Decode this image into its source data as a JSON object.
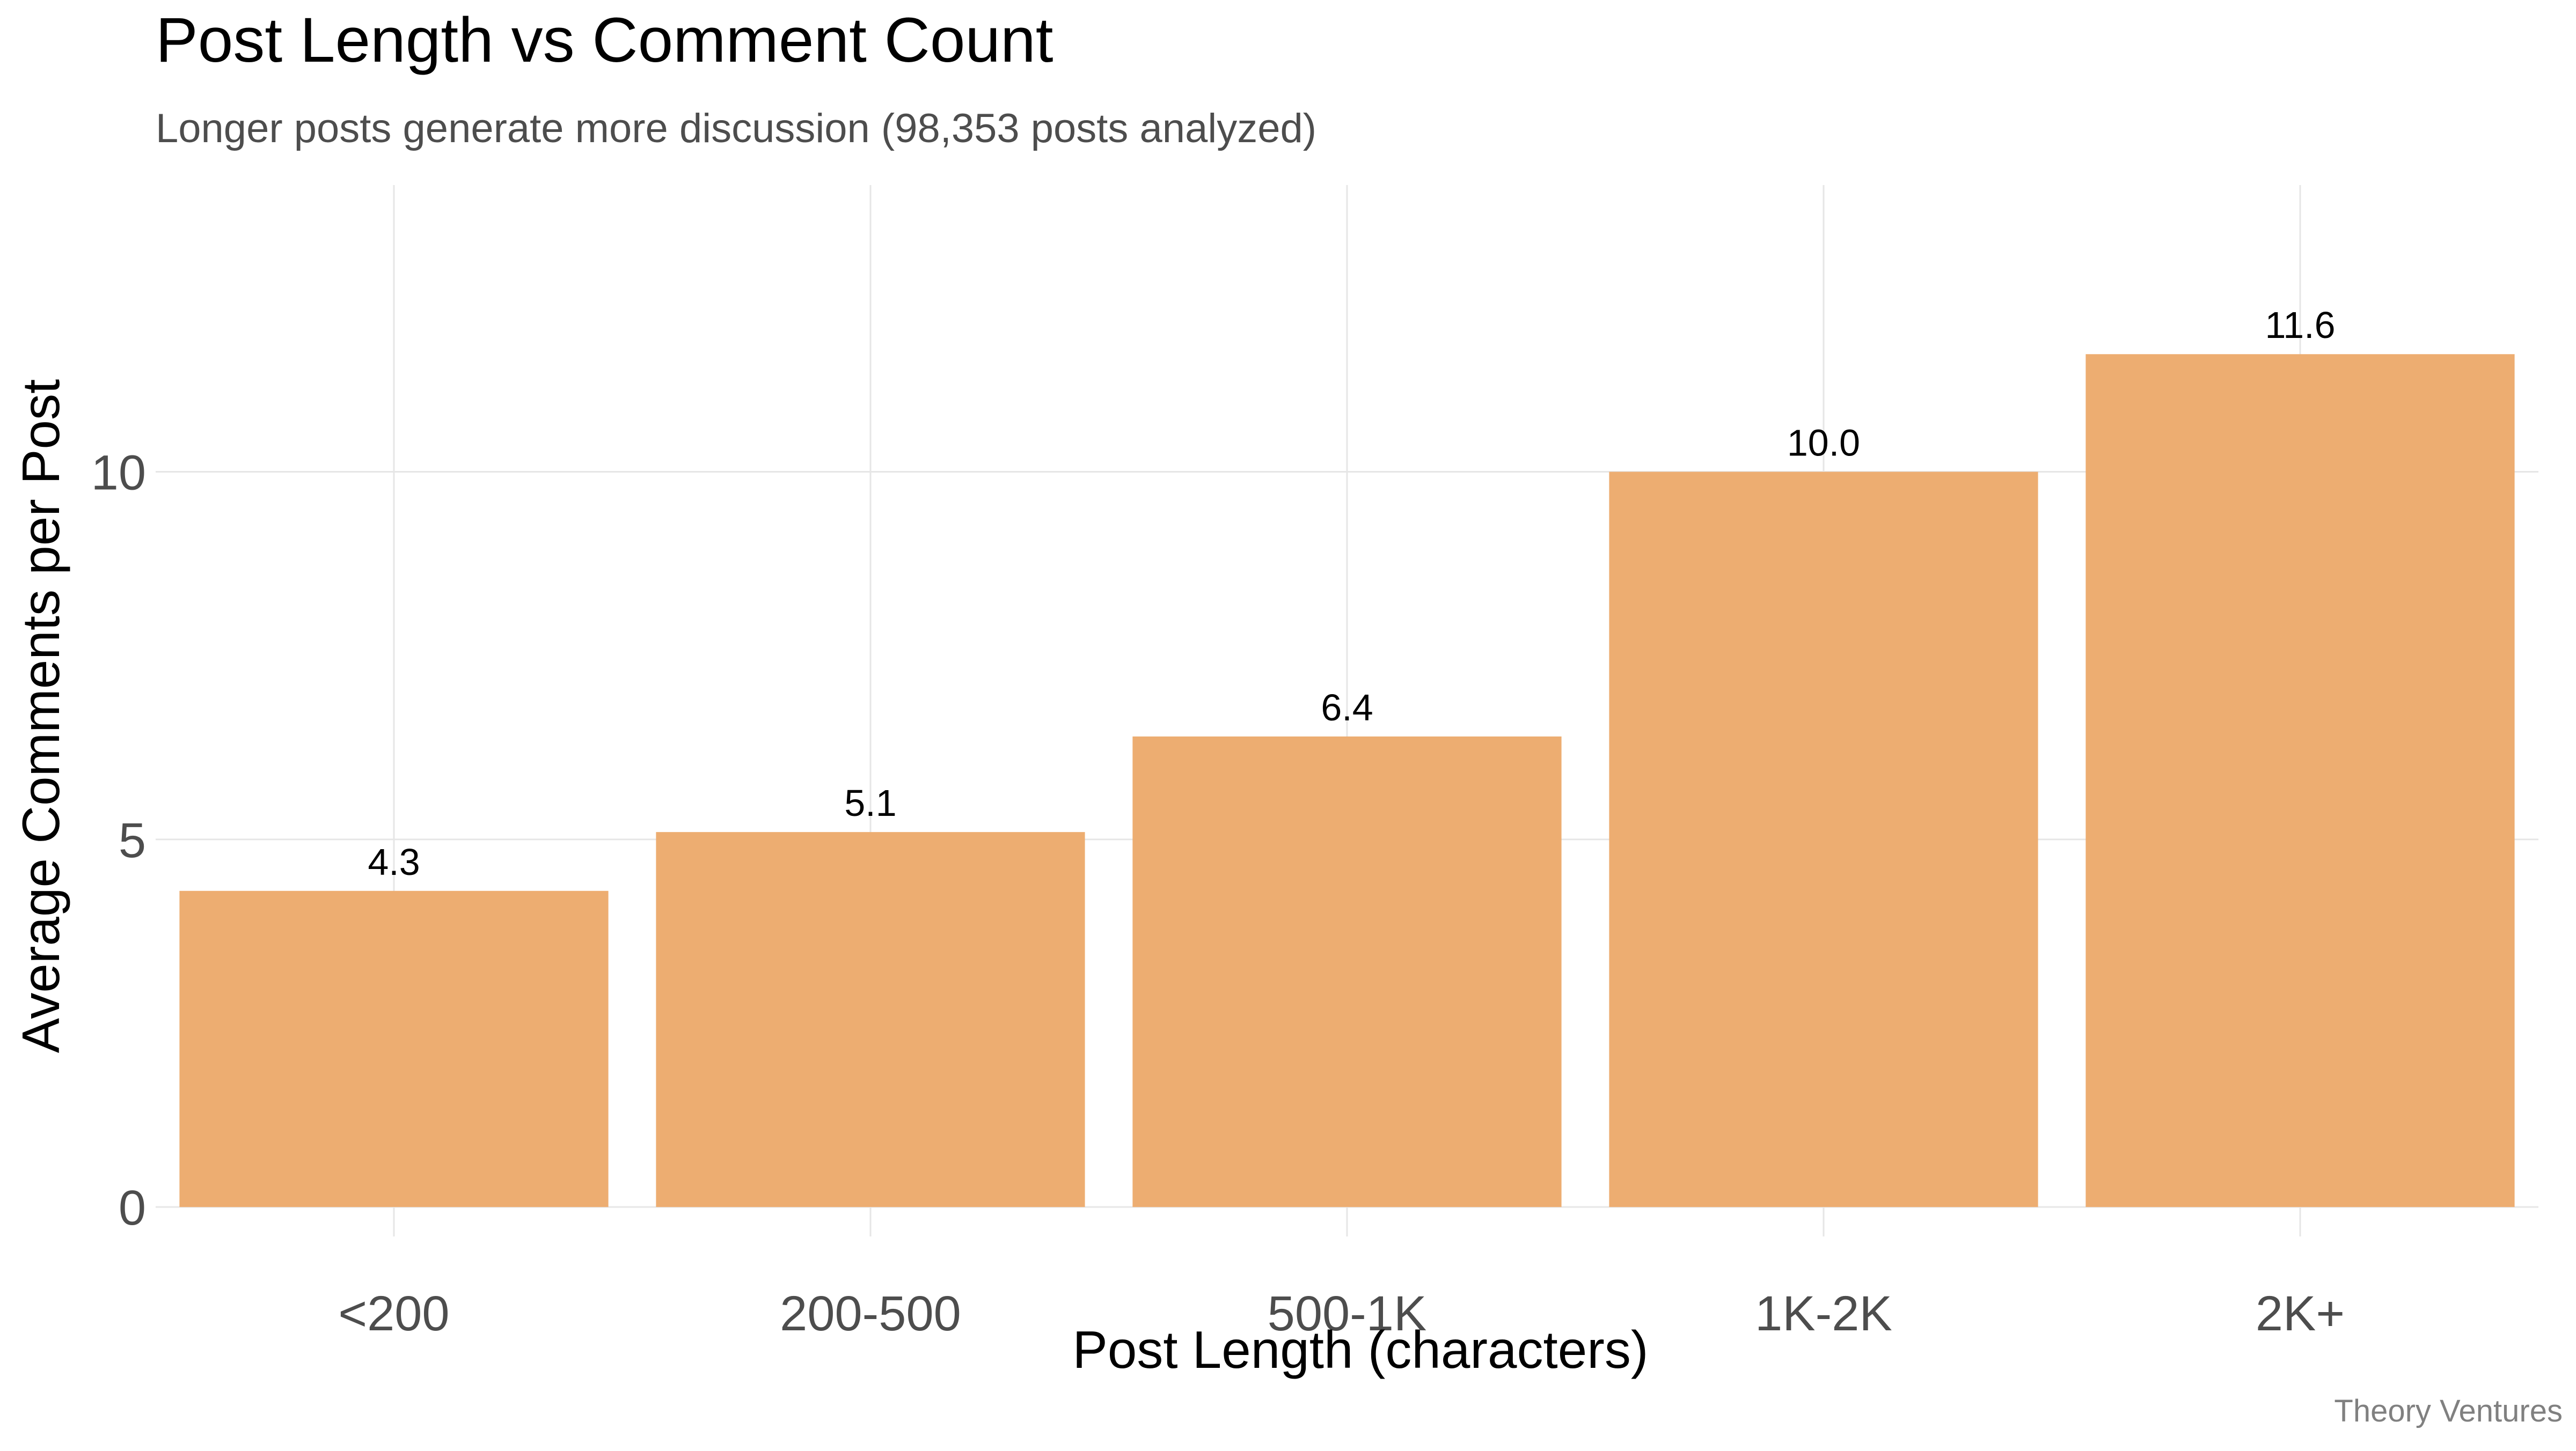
{
  "chart_data": {
    "type": "bar",
    "title": "Post Length vs Comment Count",
    "subtitle": "Longer posts generate more discussion (98,353 posts analyzed)",
    "xlabel": "Post Length (characters)",
    "ylabel": "Average Comments per Post",
    "categories": [
      "<200",
      "200-500",
      "500-1K",
      "1K-2K",
      "2K+"
    ],
    "values": [
      4.3,
      5.1,
      6.4,
      10.0,
      11.6
    ],
    "data_labels": [
      "4.3",
      "5.1",
      "6.4",
      "10.0",
      "11.6"
    ],
    "ylim": [
      -0.4,
      13.9
    ],
    "yticks": [
      0,
      5,
      10
    ],
    "ytick_labels": [
      "0",
      "5",
      "10"
    ],
    "grid": true,
    "legend": "none",
    "bar_color": "#EDAD71",
    "grid_color": "#E6E6E6",
    "caption": "Theory Ventures"
  }
}
